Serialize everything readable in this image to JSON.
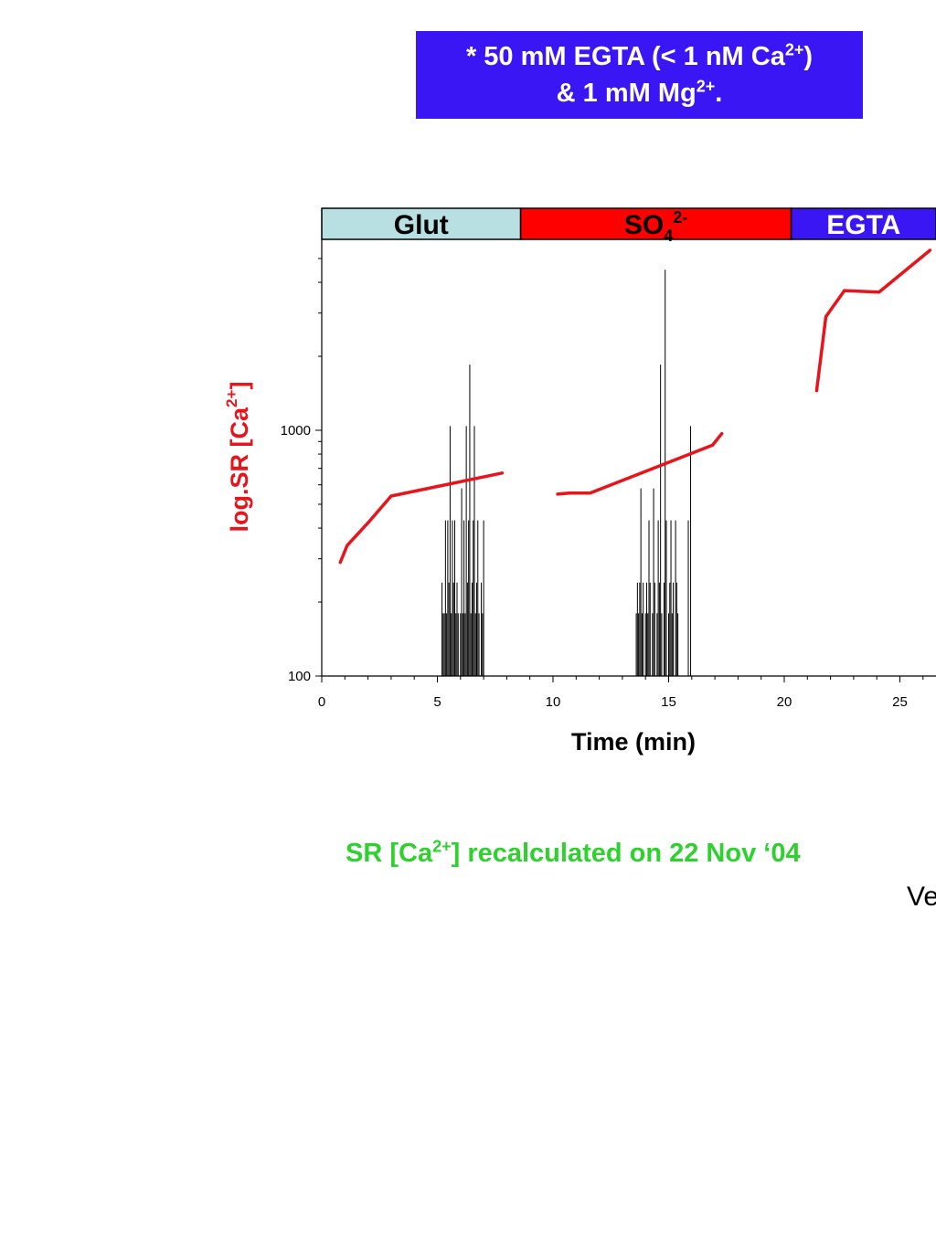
{
  "note": {
    "line1_prefix": "* 50 mM EGTA (< 1 nM Ca",
    "line1_sup": "2+",
    "line1_suffix": ")",
    "line2_prefix": "& 1 mM Mg",
    "line2_sup": "2+",
    "line2_suffix": "."
  },
  "recalc": {
    "prefix": "SR [Ca",
    "sup": "2+",
    "suffix": "] recalculated on 22 Nov ‘04"
  },
  "cut_off_text": "Ve",
  "colors": {
    "note_bg": "#3a16f5",
    "recalc_text": "#2ed12e",
    "sr_line": "#e8141b",
    "glut_band": "#b8e0e3",
    "so4_band": "#ff0000",
    "egta_band": "#3a16f5"
  },
  "chart_data": {
    "type": "line",
    "xlabel": "Time (min)",
    "ylabel": {
      "prefix": "log.SR [Ca",
      "sup": "2+",
      "suffix": "]"
    },
    "x_ticks": [
      "0",
      "5",
      "10",
      "15",
      "20",
      "25"
    ],
    "y_ticks": [
      "100",
      "1000"
    ],
    "xlim": [
      0,
      26.8
    ],
    "ylim": [
      100,
      6300
    ],
    "y_scale": "log",
    "solution_bands": [
      {
        "label": "Glut",
        "sub": "",
        "sup": "",
        "start": 0,
        "end": 8.6
      },
      {
        "label": "SO",
        "sub": "4",
        "sup": "2-",
        "start": 8.6,
        "end": 20.3
      },
      {
        "label": "EGTA",
        "sub": "",
        "sup": "",
        "start": 20.3,
        "end": 26.8
      }
    ],
    "series": [
      {
        "kind": "line",
        "segments": [
          {
            "x": [
              0.8,
              1.1,
              2.0,
              3.0,
              7.8
            ],
            "y": [
              290,
              340,
              420,
              540,
              670
            ]
          },
          {
            "x": [
              10.2,
              10.7,
              11.6,
              16.9,
              17.3
            ],
            "y": [
              550,
              555,
              555,
              870,
              970
            ]
          },
          {
            "x": [
              21.4,
              21.8,
              22.6,
              24.1,
              26.3
            ],
            "y": [
              1450,
              2900,
              3700,
              3650,
              5400
            ]
          }
        ]
      },
      {
        "kind": "events",
        "x": [
          5.2,
          5.25,
          5.3,
          5.35,
          5.4,
          5.45,
          5.5,
          5.55,
          5.6,
          5.65,
          5.7,
          5.75,
          5.8,
          5.85,
          5.9,
          6.0,
          6.05,
          6.1,
          6.15,
          6.2,
          6.25,
          6.3,
          6.35,
          6.4,
          6.45,
          6.5,
          6.55,
          6.6,
          6.65,
          6.7,
          6.75,
          6.8,
          6.9,
          6.95,
          7.0,
          13.6,
          13.65,
          13.7,
          13.75,
          13.8,
          13.85,
          13.9,
          14.0,
          14.05,
          14.1,
          14.15,
          14.2,
          14.3,
          14.35,
          14.4,
          14.5,
          14.55,
          14.6,
          14.65,
          14.7,
          14.8,
          14.85,
          14.9,
          15.0,
          15.05,
          15.1,
          15.15,
          15.2,
          15.3,
          15.35,
          15.4,
          15.85,
          15.95
        ],
        "y": [
          240,
          180,
          180,
          430,
          180,
          430,
          240,
          1040,
          180,
          430,
          240,
          430,
          180,
          240,
          180,
          180,
          580,
          180,
          430,
          180,
          1040,
          240,
          430,
          1850,
          180,
          240,
          430,
          1040,
          180,
          240,
          430,
          180,
          240,
          180,
          430,
          180,
          240,
          180,
          240,
          580,
          180,
          240,
          180,
          240,
          180,
          430,
          240,
          180,
          580,
          240,
          180,
          430,
          240,
          1850,
          180,
          240,
          4500,
          430,
          180,
          240,
          430,
          180,
          240,
          430,
          240,
          180,
          430,
          1040
        ]
      }
    ]
  }
}
